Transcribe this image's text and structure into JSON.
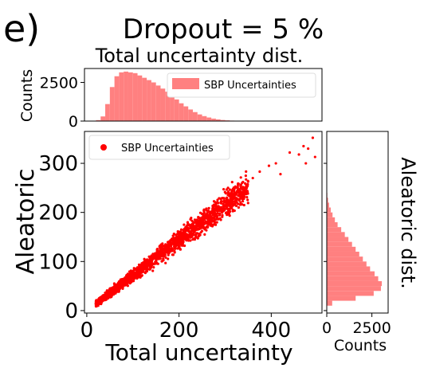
{
  "panel_label": "e)",
  "title": "Dropout = 5 %",
  "colors": {
    "bars": "#ff8080",
    "points": "#ff0000"
  },
  "chart_data": [
    {
      "type": "bar",
      "title": "Total uncertainty dist.",
      "xlabel": "",
      "ylabel": "Counts",
      "xlim": [
        -5,
        510
      ],
      "ylim": [
        0,
        3400
      ],
      "yticks": [
        0,
        2500
      ],
      "ytick_labels": [
        "0",
        "2500"
      ],
      "legend": {
        "entries": [
          "SBP Uncertainties"
        ],
        "position": "top-right"
      },
      "bin_width": 10,
      "bins": [
        {
          "x": 20,
          "count": 60
        },
        {
          "x": 30,
          "count": 300
        },
        {
          "x": 40,
          "count": 1100
        },
        {
          "x": 50,
          "count": 2200
        },
        {
          "x": 60,
          "count": 2900
        },
        {
          "x": 70,
          "count": 3150
        },
        {
          "x": 80,
          "count": 3200
        },
        {
          "x": 90,
          "count": 3150
        },
        {
          "x": 100,
          "count": 3100
        },
        {
          "x": 110,
          "count": 2950
        },
        {
          "x": 120,
          "count": 2800
        },
        {
          "x": 130,
          "count": 2650
        },
        {
          "x": 140,
          "count": 2500
        },
        {
          "x": 150,
          "count": 2300
        },
        {
          "x": 160,
          "count": 2100
        },
        {
          "x": 170,
          "count": 1900
        },
        {
          "x": 180,
          "count": 1650
        },
        {
          "x": 190,
          "count": 1400
        },
        {
          "x": 200,
          "count": 1150
        },
        {
          "x": 210,
          "count": 950
        },
        {
          "x": 220,
          "count": 750
        },
        {
          "x": 230,
          "count": 580
        },
        {
          "x": 240,
          "count": 430
        },
        {
          "x": 250,
          "count": 320
        },
        {
          "x": 260,
          "count": 230
        },
        {
          "x": 270,
          "count": 160
        },
        {
          "x": 280,
          "count": 110
        },
        {
          "x": 290,
          "count": 70
        },
        {
          "x": 300,
          "count": 45
        },
        {
          "x": 310,
          "count": 30
        },
        {
          "x": 320,
          "count": 18
        },
        {
          "x": 330,
          "count": 10
        },
        {
          "x": 340,
          "count": 6
        },
        {
          "x": 350,
          "count": 3
        }
      ]
    },
    {
      "type": "scatter",
      "xlabel": "Total uncertainty",
      "ylabel": "Aleatoric",
      "xlim": [
        -5,
        510
      ],
      "ylim": [
        -5,
        365
      ],
      "xticks": [
        0,
        200,
        400
      ],
      "xtick_labels": [
        "0",
        "200",
        "400"
      ],
      "yticks": [
        0,
        100,
        200,
        300
      ],
      "ytick_labels": [
        "0",
        "100",
        "200",
        "300"
      ],
      "legend": {
        "entries": [
          "SBP Uncertainties"
        ],
        "position": "top-left"
      },
      "trend": {
        "slope": 0.72,
        "intercept": 0,
        "x_range": [
          20,
          350
        ]
      },
      "outliers": [
        {
          "x": 360,
          "y": 270
        },
        {
          "x": 375,
          "y": 283
        },
        {
          "x": 395,
          "y": 295
        },
        {
          "x": 410,
          "y": 300
        },
        {
          "x": 420,
          "y": 278
        },
        {
          "x": 440,
          "y": 322
        },
        {
          "x": 460,
          "y": 318
        },
        {
          "x": 470,
          "y": 335
        },
        {
          "x": 480,
          "y": 330
        },
        {
          "x": 490,
          "y": 352
        },
        {
          "x": 495,
          "y": 313
        },
        {
          "x": 475,
          "y": 300
        }
      ]
    },
    {
      "type": "bar",
      "orientation": "horizontal",
      "title": "Aleatoric dist.",
      "xlabel": "Counts",
      "ylabel": "",
      "xlim": [
        0,
        3400
      ],
      "ylim": [
        -5,
        365
      ],
      "xticks": [
        0,
        2500
      ],
      "xtick_labels": [
        "0",
        "2500"
      ],
      "bin_width": 10,
      "bins": [
        {
          "y": 10,
          "count": 300
        },
        {
          "y": 20,
          "count": 1600
        },
        {
          "y": 30,
          "count": 2600
        },
        {
          "y": 40,
          "count": 3000
        },
        {
          "y": 50,
          "count": 3050
        },
        {
          "y": 60,
          "count": 2850
        },
        {
          "y": 70,
          "count": 2650
        },
        {
          "y": 80,
          "count": 2400
        },
        {
          "y": 90,
          "count": 2200
        },
        {
          "y": 100,
          "count": 2000
        },
        {
          "y": 110,
          "count": 1800
        },
        {
          "y": 120,
          "count": 1600
        },
        {
          "y": 130,
          "count": 1400
        },
        {
          "y": 140,
          "count": 1200
        },
        {
          "y": 150,
          "count": 1000
        },
        {
          "y": 160,
          "count": 800
        },
        {
          "y": 170,
          "count": 600
        },
        {
          "y": 180,
          "count": 450
        },
        {
          "y": 190,
          "count": 320
        },
        {
          "y": 200,
          "count": 220
        },
        {
          "y": 210,
          "count": 130
        },
        {
          "y": 220,
          "count": 70
        },
        {
          "y": 230,
          "count": 30
        },
        {
          "y": 240,
          "count": 12
        }
      ]
    }
  ]
}
